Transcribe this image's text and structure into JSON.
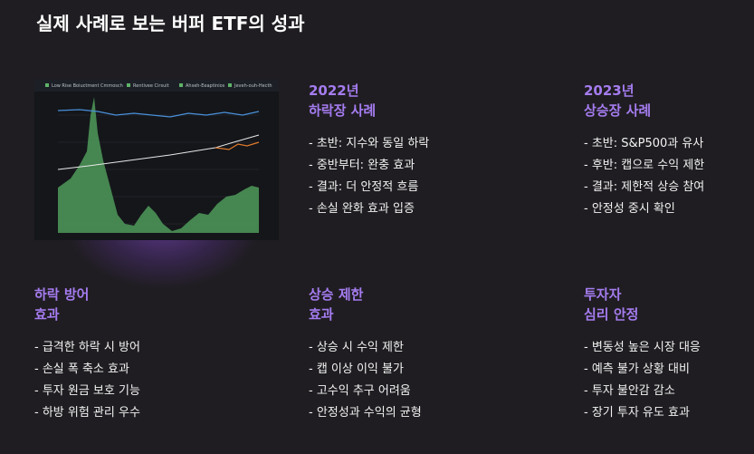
{
  "header": {
    "title": "실제 사례로 보는 버퍼 ETF의 성과"
  },
  "image": {
    "legend": [
      "Low Rise Boiuctment Cmmosch",
      "Rentivee Cirsuit",
      "Ahseh-Eeaptinios",
      "Jeveh-ouh-Hecth"
    ]
  },
  "sections": [
    {
      "title": [
        "2022년",
        "하락장 사례"
      ],
      "items": [
        "- 초반: 지수와 동일 하락",
        "- 중반부터: 완충 효과",
        "- 결과: 더 안정적 흐름",
        "- 손실 완화 효과 입증"
      ]
    },
    {
      "title": [
        "2023년",
        "상승장 사례"
      ],
      "items": [
        "- 초반: S&P500과 유사",
        "- 후반: 캡으로 수익 제한",
        "- 결과: 제한적 상승 참여",
        "- 안정성 중시 확인"
      ]
    },
    {
      "title": [
        "하락 방어",
        "효과"
      ],
      "items": [
        "- 급격한 하락 시 방어",
        "- 손실 폭 축소 효과",
        "- 투자 원금 보호 기능",
        "- 하방 위험 관리 우수"
      ]
    },
    {
      "title": [
        "상승 제한",
        "효과"
      ],
      "items": [
        "- 상승 시 수익 제한",
        "- 캡 이상 이익 불가",
        "- 고수익 추구 어려움",
        "- 안정성과 수익의 균형"
      ]
    },
    {
      "title": [
        "투자자",
        "심리 안정"
      ],
      "items": [
        "- 변동성 높은 시장 대응",
        "- 예측 불가 상황 대비",
        "- 투자 불안감 감소",
        "- 장기 투자 유도 효과"
      ]
    }
  ]
}
